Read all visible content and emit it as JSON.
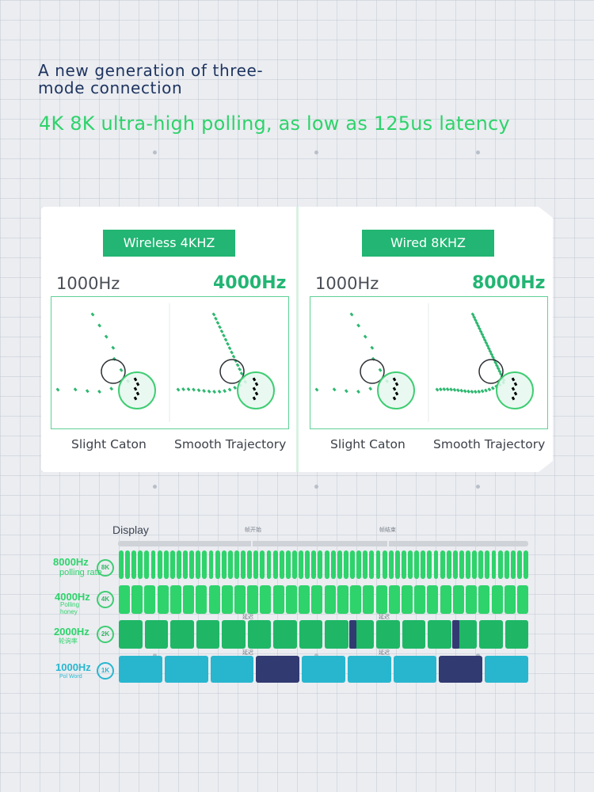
{
  "header": {
    "title": "A new generation of three-mode connection",
    "subtitle": "4K 8K ultra-high polling, as low as 125us latency"
  },
  "comparison": {
    "panels": [
      {
        "mode": "Wireless 4KHZ",
        "low_rate": "1000Hz",
        "high_rate": "4000Hz",
        "low_caption": "Slight Caton",
        "high_caption": "Smooth Trajectory"
      },
      {
        "mode": "Wired 8KHZ",
        "low_rate": "1000Hz",
        "high_rate": "8000Hz",
        "low_caption": "Slight Caton",
        "high_caption": "Smooth Trajectory"
      }
    ]
  },
  "polling": {
    "display_label": "Display",
    "frame_start": "帧开始",
    "frame_end": "帧结束",
    "latency_label": "延迟",
    "rows": [
      {
        "rate": "8000Hz",
        "badge": "8K",
        "sub": "polling rate",
        "bars": 64,
        "color": "#2ed36b",
        "label_color": "#2ed36b"
      },
      {
        "rate": "4000Hz",
        "badge": "4K",
        "sub": "Polling honey",
        "bars": 32,
        "color": "#2ed36b",
        "label_color": "#2ed36b"
      },
      {
        "rate": "2000Hz",
        "badge": "2K",
        "sub": "轮询率",
        "bars": 16,
        "color": "#1fb765",
        "label_color": "#2ed36b",
        "delay_slots": [
          9,
          13
        ]
      },
      {
        "rate": "1000Hz",
        "badge": "1K",
        "sub": "Pol Word",
        "bars": 9,
        "color": "#28b6cf",
        "label_color": "#28b6cf",
        "delay_slots": [
          3,
          7
        ]
      }
    ],
    "colors": {
      "delay_bar": "#323a72"
    }
  }
}
